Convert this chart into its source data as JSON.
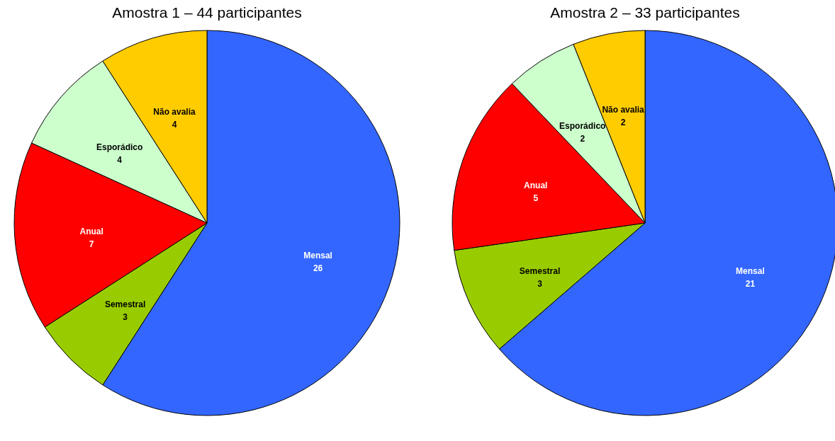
{
  "chart_data": [
    {
      "type": "pie",
      "title": "Amostra 1 – 44 participantes",
      "categories": [
        "Mensal",
        "Semestral",
        "Anual",
        "Esporádico",
        "Não avalia"
      ],
      "values": [
        26,
        3,
        7,
        4,
        4
      ],
      "colors": [
        "#3366ff",
        "#99cc00",
        "#ff0000",
        "#ccffcc",
        "#ffcc00"
      ],
      "data_labels": true
    },
    {
      "type": "pie",
      "title": "Amostra 2 – 33 participantes",
      "categories": [
        "Mensal",
        "Semestral",
        "Anual",
        "Esporádico",
        "Não avalia"
      ],
      "values": [
        21,
        3,
        5,
        2,
        2
      ],
      "colors": [
        "#3366ff",
        "#99cc00",
        "#ff0000",
        "#ccffcc",
        "#ffcc00"
      ],
      "data_labels": true
    }
  ]
}
